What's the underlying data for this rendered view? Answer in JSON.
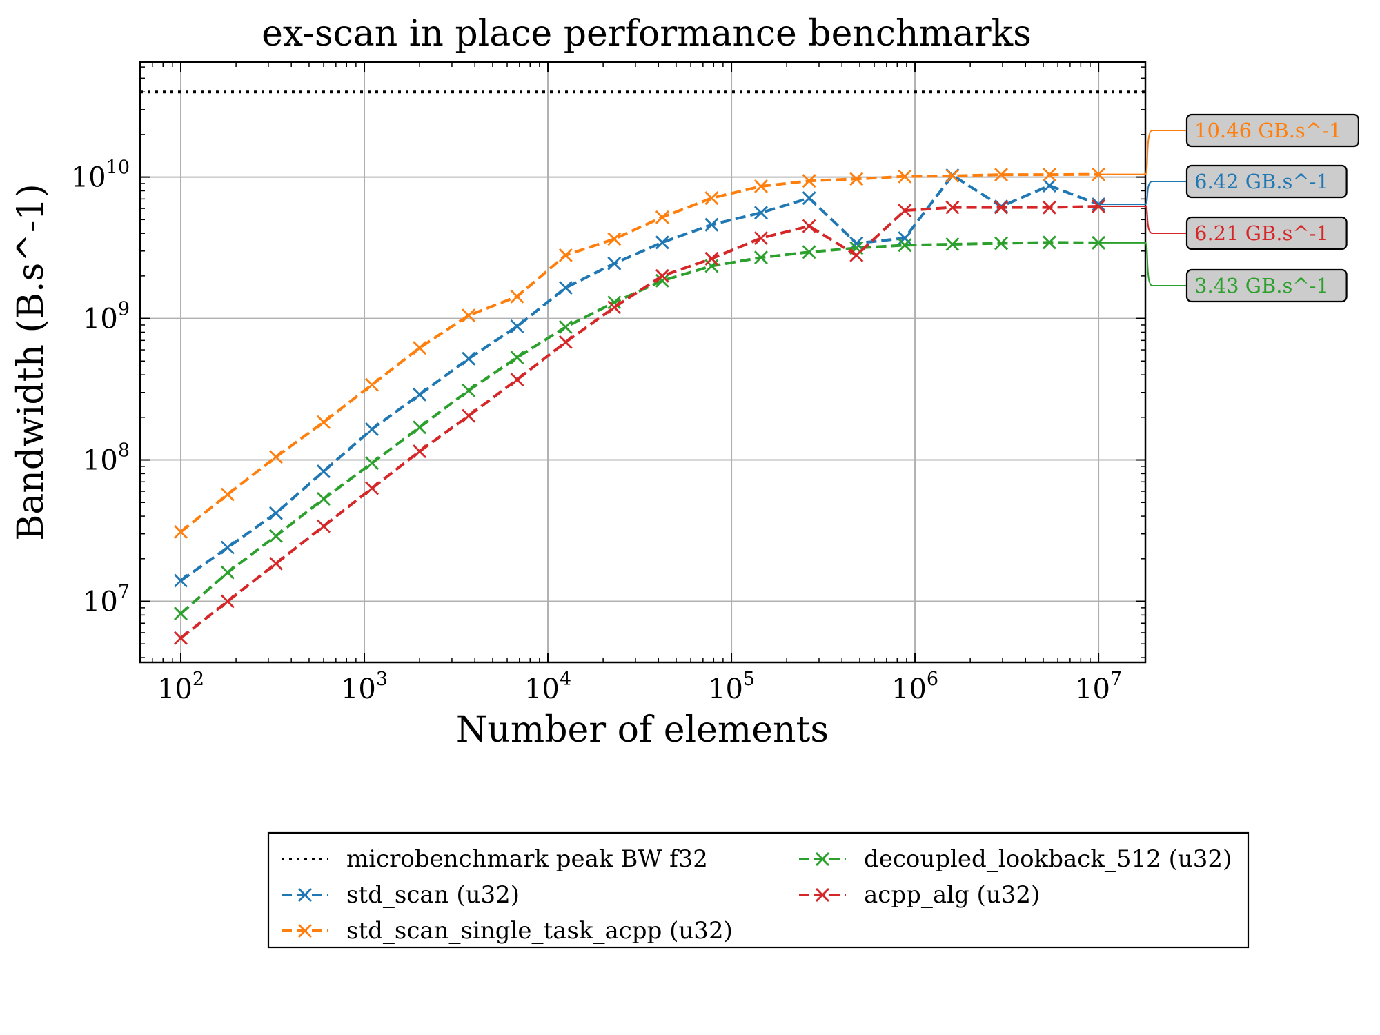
{
  "chart_data": {
    "type": "line",
    "title": "ex-scan in place performance benchmarks",
    "xlabel": "Number of elements",
    "ylabel": "Bandwidth (B.s^-1)",
    "xscale": "log",
    "yscale": "log",
    "xlim": [
      60,
      18000000
    ],
    "ylim": [
      3700000,
      65000000000
    ],
    "grid": true,
    "legend_position": "below-plot",
    "x_ticks": [
      {
        "value": 100,
        "base": "10",
        "exp": "2"
      },
      {
        "value": 1000,
        "base": "10",
        "exp": "3"
      },
      {
        "value": 10000,
        "base": "10",
        "exp": "4"
      },
      {
        "value": 100000,
        "base": "10",
        "exp": "5"
      },
      {
        "value": 1000000,
        "base": "10",
        "exp": "6"
      },
      {
        "value": 10000000,
        "base": "10",
        "exp": "7"
      }
    ],
    "y_ticks": [
      {
        "value": 10000000,
        "base": "10",
        "exp": "7"
      },
      {
        "value": 100000000,
        "base": "10",
        "exp": "8"
      },
      {
        "value": 1000000000,
        "base": "10",
        "exp": "9"
      },
      {
        "value": 10000000000,
        "base": "10",
        "exp": "10"
      }
    ],
    "reference_line": {
      "name": "microbenchmark peak BW f32",
      "value": 40000000000,
      "color": "#000000",
      "style": "dotted"
    },
    "x": [
      100,
      180,
      330,
      600,
      1100,
      2000,
      3700,
      6800,
      12500,
      23000,
      42000,
      78000,
      145000,
      265000,
      480000,
      880000,
      1600000,
      2950000,
      5400000,
      10000000
    ],
    "series": [
      {
        "name": "std_scan (u32)",
        "color": "#1f77b4",
        "values": [
          14000000,
          24000000,
          42000000,
          83000000,
          165000000,
          290000000,
          520000000,
          880000000,
          1650000000,
          2450000000,
          3450000000,
          4600000000,
          5600000000,
          7100000000,
          3400000000,
          3700000000,
          10300000000,
          6200000000,
          8700000000,
          6420000000
        ]
      },
      {
        "name": "std_scan_single_task_acpp (u32)",
        "color": "#ff7f0e",
        "values": [
          31000000,
          57000000,
          105000000,
          185000000,
          340000000,
          620000000,
          1050000000,
          1430000000,
          2800000000,
          3650000000,
          5200000000,
          7100000000,
          8600000000,
          9400000000,
          9700000000,
          10100000000,
          10200000000,
          10400000000,
          10400000000,
          10460000000
        ]
      },
      {
        "name": "decoupled_lookback_512 (u32)",
        "color": "#2ca02c",
        "values": [
          8200000,
          16000000,
          29000000,
          53000000,
          95000000,
          170000000,
          310000000,
          530000000,
          870000000,
          1300000000,
          1850000000,
          2350000000,
          2700000000,
          2950000000,
          3150000000,
          3300000000,
          3350000000,
          3400000000,
          3450000000,
          3430000000
        ]
      },
      {
        "name": "acpp_alg (u32)",
        "color": "#d62728",
        "values": [
          5500000,
          10000000,
          18500000,
          34000000,
          63000000,
          115000000,
          205000000,
          370000000,
          680000000,
          1200000000,
          2000000000,
          2650000000,
          3700000000,
          4500000000,
          2800000000,
          5800000000,
          6100000000,
          6100000000,
          6100000000,
          6210000000
        ]
      }
    ],
    "annotations": [
      {
        "text": "10.46 GB.s^-1",
        "series": "std_scan_single_task_acpp (u32)",
        "color": "#ff7f0e"
      },
      {
        "text": "6.42 GB.s^-1",
        "series": "std_scan (u32)",
        "color": "#1f77b4"
      },
      {
        "text": "6.21 GB.s^-1",
        "series": "acpp_alg (u32)",
        "color": "#d62728"
      },
      {
        "text": "3.43 GB.s^-1",
        "series": "decoupled_lookback_512 (u32)",
        "color": "#2ca02c"
      }
    ],
    "legend": [
      {
        "label": "microbenchmark peak BW f32",
        "color": "#000000",
        "style": "dotted",
        "marker": ""
      },
      {
        "label": "std_scan (u32)",
        "color": "#1f77b4",
        "style": "dashed",
        "marker": "x"
      },
      {
        "label": "std_scan_single_task_acpp (u32)",
        "color": "#ff7f0e",
        "style": "dashed",
        "marker": "x"
      },
      {
        "label": "decoupled_lookback_512 (u32)",
        "color": "#2ca02c",
        "style": "dashed",
        "marker": "x"
      },
      {
        "label": "acpp_alg (u32)",
        "color": "#d62728",
        "style": "dashed",
        "marker": "x"
      }
    ]
  }
}
